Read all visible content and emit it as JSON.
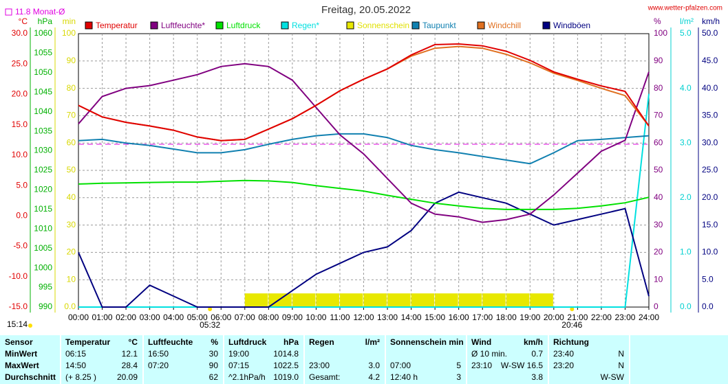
{
  "title": "Freitag, 20.05.2022",
  "site": "www.wetter-pfalzen.com",
  "updated": "15:14",
  "chart_data": {
    "type": "line",
    "monthly_avg": {
      "value": 11.8,
      "label": "11.8 Monat-Ø",
      "axis": 0,
      "color": "#e000e0"
    },
    "sunrise": {
      "value": 5.533,
      "label": "05:32"
    },
    "sunset": {
      "value": 20.767,
      "label": "20:46"
    },
    "xlim": [
      0,
      24
    ],
    "xticks": [
      {
        "value": 0,
        "label": "00:00"
      },
      {
        "value": 1,
        "label": "01:00"
      },
      {
        "value": 2,
        "label": "02:00"
      },
      {
        "value": 3,
        "label": "03:00"
      },
      {
        "value": 4,
        "label": "04:00"
      },
      {
        "value": 5,
        "label": "05:00"
      },
      {
        "value": 6,
        "label": "06:00"
      },
      {
        "value": 7,
        "label": "07:00"
      },
      {
        "value": 8,
        "label": "08:00"
      },
      {
        "value": 9,
        "label": "09:00"
      },
      {
        "value": 10,
        "label": "10:00"
      },
      {
        "value": 11,
        "label": "11:00"
      },
      {
        "value": 12,
        "label": "12:00"
      },
      {
        "value": 13,
        "label": "13:00"
      },
      {
        "value": 14,
        "label": "14:00"
      },
      {
        "value": 15,
        "label": "15:00"
      },
      {
        "value": 16,
        "label": "16:00"
      },
      {
        "value": 17,
        "label": "17:00"
      },
      {
        "value": 18,
        "label": "18:00"
      },
      {
        "value": 19,
        "label": "19:00"
      },
      {
        "value": 20,
        "label": "20:00"
      },
      {
        "value": 21,
        "label": "21:00"
      },
      {
        "value": 22,
        "label": "22:00"
      },
      {
        "value": 23,
        "label": "23:00"
      },
      {
        "value": 24,
        "label": "24:00"
      }
    ],
    "x": [
      0,
      1,
      2,
      3,
      4,
      5,
      6,
      7,
      8,
      9,
      10,
      11,
      12,
      13,
      14,
      15,
      16,
      17,
      18,
      19,
      20,
      21,
      22,
      23,
      24
    ],
    "grid": true,
    "axes": [
      {
        "unit": "°C",
        "color": "#e00000",
        "ylim": [
          -15,
          30
        ],
        "yticks": [
          {
            "value": 30,
            "label": "30.0"
          },
          {
            "value": 25,
            "label": "25.0"
          },
          {
            "value": 20,
            "label": "20.0"
          },
          {
            "value": 15,
            "label": "15.0"
          },
          {
            "value": 10,
            "label": "10.0"
          },
          {
            "value": 5,
            "label": "5.0"
          },
          {
            "value": 0,
            "label": "0.0"
          },
          {
            "value": -5,
            "label": "-5.0"
          },
          {
            "value": -10,
            "label": "-10.0"
          },
          {
            "value": -15,
            "label": "-15.0"
          }
        ]
      },
      {
        "unit": "hPa",
        "color": "#00b000",
        "ylim": [
          990,
          1060
        ],
        "yticks": [
          1060,
          1055,
          1050,
          1045,
          1040,
          1035,
          1030,
          1025,
          1020,
          1015,
          1010,
          1005,
          1000,
          995,
          990
        ]
      },
      {
        "unit": "min",
        "color": "#d8d800",
        "ylim": [
          0,
          100
        ],
        "yticks": [
          100,
          90,
          80,
          70,
          60,
          50,
          40,
          30,
          20,
          10,
          {
            "value": 0,
            "label": "0.0"
          }
        ]
      },
      {
        "unit": "%",
        "color": "#800080",
        "ylim": [
          0,
          100
        ],
        "yticks": [
          100,
          90,
          80,
          70,
          60,
          50,
          40,
          30,
          20,
          10,
          0
        ]
      },
      {
        "unit": "l/m²",
        "color": "#00d0d0",
        "ylim": [
          0,
          5
        ],
        "yticks": [
          {
            "value": 5,
            "label": "5.0"
          },
          {
            "value": 4,
            "label": "4.0"
          },
          {
            "value": 3,
            "label": "3.0"
          },
          {
            "value": 2,
            "label": "2.0"
          },
          {
            "value": 1,
            "label": "1.0"
          },
          {
            "value": 0,
            "label": "0.0"
          }
        ]
      },
      {
        "unit": "km/h",
        "color": "#000080",
        "ylim": [
          0,
          50
        ],
        "yticks": [
          {
            "value": 50,
            "label": "50.0"
          },
          {
            "value": 45,
            "label": "45.0"
          },
          {
            "value": 40,
            "label": "40.0"
          },
          {
            "value": 35,
            "label": "35.0"
          },
          {
            "value": 30,
            "label": "30.0"
          },
          {
            "value": 25,
            "label": "25.0"
          },
          {
            "value": 20,
            "label": "20.0"
          },
          {
            "value": 15,
            "label": "15.0"
          },
          {
            "value": 10,
            "label": "10.0"
          },
          {
            "value": 5,
            "label": "5.0"
          },
          {
            "value": 0,
            "label": "0.0"
          }
        ]
      }
    ],
    "series": [
      {
        "name": "Temperatur",
        "color": "#e00000",
        "axis": 0,
        "values": [
          18.2,
          16.3,
          15.4,
          14.8,
          14.1,
          13.0,
          12.4,
          12.6,
          14.3,
          16.0,
          18.2,
          20.6,
          22.5,
          24.2,
          26.5,
          28.2,
          28.3,
          28.0,
          27.1,
          25.6,
          23.7,
          22.5,
          21.4,
          20.5,
          14.8
        ]
      },
      {
        "name": "Luftfeuchte*",
        "color": "#800080",
        "axis": 3,
        "values": [
          67,
          77,
          80,
          81,
          83,
          85,
          88,
          89,
          88,
          83,
          73,
          63,
          56,
          47,
          38,
          34,
          33,
          31,
          32,
          34,
          41,
          49,
          57,
          61,
          86
        ]
      },
      {
        "name": "Luftdruck",
        "color": "#00e000",
        "axis": 1,
        "values": [
          1021.5,
          1021.7,
          1021.8,
          1021.9,
          1022.0,
          1022.0,
          1022.2,
          1022.4,
          1022.3,
          1021.9,
          1021.1,
          1020.4,
          1019.7,
          1018.6,
          1017.6,
          1016.6,
          1015.9,
          1015.3,
          1015.0,
          1015.0,
          1015.0,
          1015.3,
          1015.9,
          1016.7,
          1018.1
        ]
      },
      {
        "name": "Regen*",
        "color": "#00e0e0",
        "axis": 4,
        "values": [
          0,
          0,
          0,
          0,
          0,
          0,
          0,
          0,
          0,
          0,
          0,
          0,
          0,
          0,
          0,
          0,
          0,
          0,
          0,
          0,
          0,
          0,
          0,
          0,
          3.9
        ]
      },
      {
        "name": "Sonnenschein",
        "color": "#e8e800",
        "axis": 2,
        "type": "bar",
        "values": [
          0,
          0,
          0,
          0,
          0,
          0,
          0,
          5,
          5,
          5,
          5,
          5,
          5,
          5,
          5,
          5,
          5,
          5,
          5,
          5,
          0,
          0,
          0,
          0,
          0
        ]
      },
      {
        "name": "Taupunkt",
        "color": "#1080b0",
        "axis": 0,
        "values": [
          12.4,
          12.6,
          12.0,
          11.6,
          11.0,
          10.4,
          10.4,
          10.9,
          11.8,
          12.6,
          13.2,
          13.5,
          13.5,
          12.9,
          11.6,
          10.9,
          10.4,
          9.8,
          9.2,
          8.6,
          10.4,
          12.4,
          12.6,
          12.9,
          13.2
        ]
      },
      {
        "name": "Windchill",
        "color": "#e07020",
        "axis": 0,
        "values": [
          18.2,
          16.3,
          15.4,
          14.8,
          14.1,
          13.0,
          12.4,
          12.6,
          14.3,
          16.0,
          18.2,
          20.6,
          22.5,
          24.2,
          26.3,
          27.6,
          27.9,
          27.6,
          26.6,
          25.2,
          23.5,
          22.3,
          21.0,
          19.8,
          14.8
        ]
      },
      {
        "name": "Windböen",
        "color": "#000080",
        "axis": 5,
        "values": [
          10,
          0,
          0,
          4,
          2,
          0,
          0,
          0,
          0,
          3,
          6,
          8,
          10,
          11,
          14,
          19,
          21,
          20,
          19,
          17,
          15,
          16,
          17,
          18,
          2
        ]
      }
    ]
  },
  "table": {
    "header": [
      [
        "Sensor"
      ],
      [
        "Temperatur",
        "°C"
      ],
      [
        "Luftfeuchte",
        "%"
      ],
      [
        "Luftdruck",
        "hPa"
      ],
      [
        "Regen",
        "l/m²"
      ],
      [
        "Sonnenschein min"
      ],
      [
        "Wind",
        "km/h"
      ],
      [
        "Richtung"
      ]
    ],
    "rows": [
      [
        [
          "MinWert"
        ],
        [
          "06:15",
          "12.1"
        ],
        [
          "16:50",
          "30"
        ],
        [
          "19:00",
          "1014.8"
        ],
        [
          null,
          null
        ],
        [
          null,
          null
        ],
        [
          "Ø 10 min.",
          "0.7"
        ],
        [
          "23:40",
          "N"
        ]
      ],
      [
        [
          "MaxWert"
        ],
        [
          "14:50",
          "28.4"
        ],
        [
          "07:20",
          "90"
        ],
        [
          "07:15",
          "1022.5"
        ],
        [
          "23:00",
          "3.0"
        ],
        [
          "07:00",
          "5"
        ],
        [
          "23:10",
          "W-SW 16.5"
        ],
        [
          "23:20",
          "N"
        ]
      ],
      [
        [
          "Durchschnitt"
        ],
        [
          "(+ 8.25 )",
          "20.09"
        ],
        [
          null,
          "62"
        ],
        [
          "^2.1hPa/h",
          "1019.0"
        ],
        [
          "Gesamt:",
          "4.2"
        ],
        [
          "12:40 h",
          "3"
        ],
        [
          null,
          "3.8"
        ],
        [
          null,
          "W-SW"
        ]
      ]
    ]
  }
}
